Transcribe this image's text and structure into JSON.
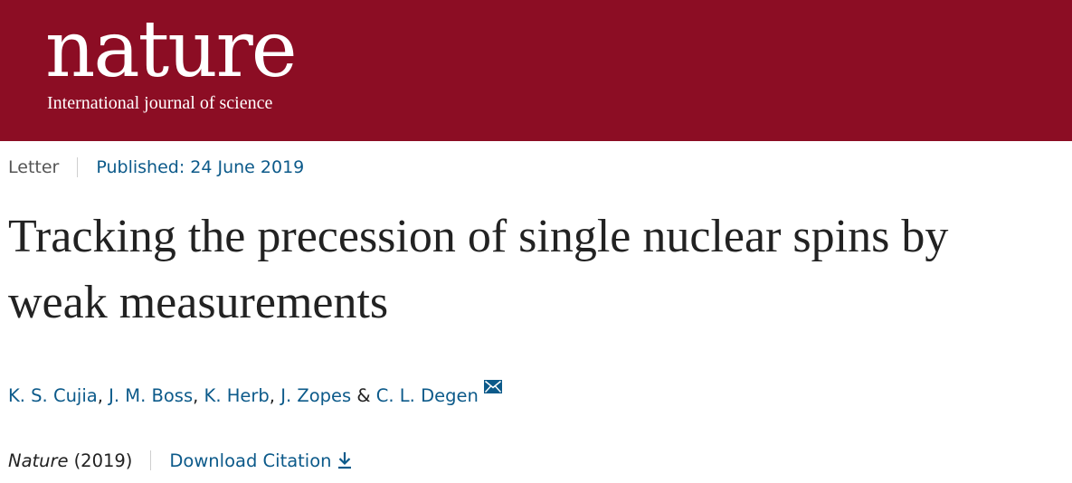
{
  "header": {
    "logo_word": "nature",
    "tagline": "International journal of science"
  },
  "article": {
    "type": "Letter",
    "published": "Published: 24 June 2019",
    "title": "Tracking the precession of single nuclear spins by weak measurements",
    "authors": [
      "K. S. Cujia",
      "J. M. Boss",
      "K. Herb",
      "J. Zopes",
      "C. L. Degen"
    ],
    "author_separator": ",",
    "author_conjunction": "&",
    "journal": "Nature",
    "year": "(2019)",
    "download_label": "Download Citation"
  },
  "icons": {
    "contact": "envelope-icon",
    "download": "download-arrow-icon"
  },
  "colors": {
    "header_bg": "#8c0d24",
    "link": "#0c5a8a",
    "text": "#222222"
  }
}
